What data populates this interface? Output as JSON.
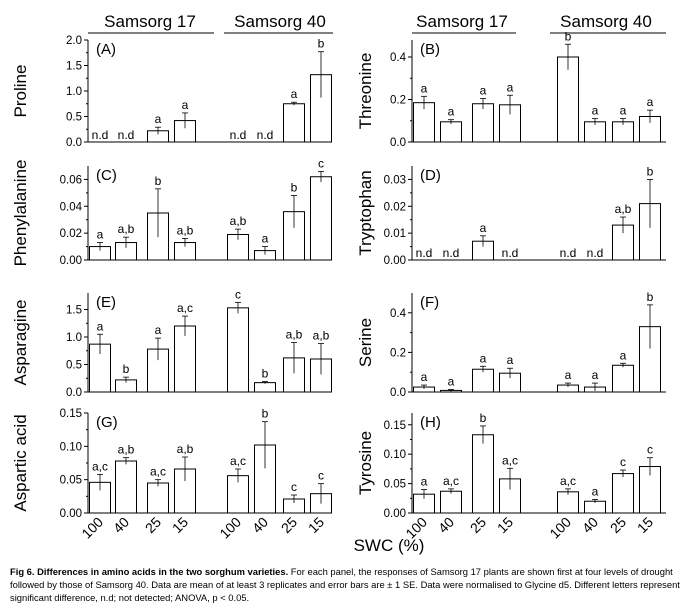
{
  "figure": {
    "varieties": [
      "Samsorg 17",
      "Samsorg 40"
    ],
    "x_tick_labels": [
      "100",
      "40",
      "25",
      "15",
      "100",
      "40",
      "25",
      "15"
    ],
    "xlabel": "SWC (%)"
  },
  "caption": {
    "lead": "Fig 6. Differences in amino acids in the two sorghum varieties.",
    "text": " For each panel, the responses of Samsorg 17 plants are shown first at four levels of drought followed by those of Samsorg 40. Data are mean of at least 3 replicates and error bars are ± 1 SE. Data were normalised to Glycine d5. Different letters represent significant difference, n.d; not detected; ANOVA, p < 0.05."
  },
  "chart_data": [
    {
      "panel": "(A)",
      "type": "bar",
      "ylabel": "Proline",
      "ylim": [
        0,
        2.0
      ],
      "yticks": [
        "0.0",
        "0.5",
        "1.0",
        "1.5",
        "2.0"
      ],
      "categories": [
        "100",
        "40",
        "25",
        "15",
        "100",
        "40",
        "25",
        "15"
      ],
      "values": [
        0,
        0,
        0.22,
        0.42,
        0,
        0,
        0.75,
        1.32
      ],
      "errors": [
        0,
        0,
        0.07,
        0.15,
        0,
        0,
        0.03,
        0.45
      ],
      "labels": [
        "n.d",
        "n.d",
        "a",
        "a",
        "n.d",
        "n.d",
        "a",
        "b"
      ]
    },
    {
      "panel": "(B)",
      "type": "bar",
      "ylabel": "Threonine",
      "ylim": [
        0,
        0.48
      ],
      "yticks": [
        "0.0",
        "0.2",
        "0.4"
      ],
      "categories": [
        "100",
        "40",
        "25",
        "15",
        "100",
        "40",
        "25",
        "15"
      ],
      "values": [
        0.185,
        0.095,
        0.18,
        0.175,
        0.4,
        0.095,
        0.095,
        0.12
      ],
      "errors": [
        0.03,
        0.01,
        0.025,
        0.045,
        0.06,
        0.015,
        0.015,
        0.03
      ],
      "labels": [
        "a",
        "a",
        "a",
        "a",
        "b",
        "a",
        "a",
        "a"
      ]
    },
    {
      "panel": "(C)",
      "type": "bar",
      "ylabel": "Phenylalanine",
      "ylim": [
        0,
        0.07
      ],
      "yticks": [
        "0.00",
        "0.02",
        "0.04",
        "0.06"
      ],
      "categories": [
        "100",
        "40",
        "25",
        "15",
        "100",
        "40",
        "25",
        "15"
      ],
      "values": [
        0.01,
        0.013,
        0.035,
        0.013,
        0.019,
        0.007,
        0.036,
        0.062
      ],
      "errors": [
        0.003,
        0.004,
        0.018,
        0.003,
        0.004,
        0.003,
        0.012,
        0.004
      ],
      "labels": [
        "a",
        "a,b",
        "b",
        "a,b",
        "a,b",
        "a",
        "b",
        "c"
      ]
    },
    {
      "panel": "(D)",
      "type": "bar",
      "ylabel": "Tryptophan",
      "ylim": [
        0,
        0.035
      ],
      "yticks": [
        "0.00",
        "0.01",
        "0.02",
        "0.03"
      ],
      "categories": [
        "100",
        "40",
        "25",
        "15",
        "100",
        "40",
        "25",
        "15"
      ],
      "values": [
        0,
        0,
        0.007,
        0,
        0,
        0,
        0.013,
        0.021
      ],
      "errors": [
        0,
        0,
        0.002,
        0,
        0,
        0,
        0.003,
        0.009
      ],
      "labels": [
        "n.d",
        "n.d",
        "a",
        "n.d",
        "n.d",
        "n.d",
        "a,b",
        "b"
      ]
    },
    {
      "panel": "(E)",
      "type": "bar",
      "ylabel": "Asparagine",
      "ylim": [
        0,
        1.8
      ],
      "yticks": [
        "0.0",
        "0.5",
        "1.0",
        "1.5"
      ],
      "categories": [
        "100",
        "40",
        "25",
        "15",
        "100",
        "40",
        "25",
        "15"
      ],
      "values": [
        0.87,
        0.22,
        0.78,
        1.2,
        1.53,
        0.17,
        0.62,
        0.6
      ],
      "errors": [
        0.18,
        0.05,
        0.2,
        0.18,
        0.1,
        0.02,
        0.28,
        0.28
      ],
      "labels": [
        "a",
        "b",
        "a",
        "a,c",
        "c",
        "b",
        "a,b",
        "a,b"
      ]
    },
    {
      "panel": "(F)",
      "type": "bar",
      "ylabel": "Serine",
      "ylim": [
        0,
        0.5
      ],
      "yticks": [
        "0.0",
        "0.2",
        "0.4"
      ],
      "categories": [
        "100",
        "40",
        "25",
        "15",
        "100",
        "40",
        "25",
        "15"
      ],
      "values": [
        0.025,
        0.008,
        0.115,
        0.095,
        0.035,
        0.025,
        0.135,
        0.33
      ],
      "errors": [
        0.01,
        0.005,
        0.015,
        0.025,
        0.01,
        0.02,
        0.01,
        0.11
      ],
      "labels": [
        "a",
        "a",
        "a",
        "a",
        "a",
        "a",
        "a",
        "b"
      ]
    },
    {
      "panel": "(G)",
      "type": "bar",
      "ylabel": "Aspartic acid",
      "ylim": [
        0,
        0.15
      ],
      "yticks": [
        "0.00",
        "0.05",
        "0.10",
        "0.15"
      ],
      "categories": [
        "100",
        "40",
        "25",
        "15",
        "100",
        "40",
        "25",
        "15"
      ],
      "values": [
        0.046,
        0.078,
        0.045,
        0.066,
        0.056,
        0.102,
        0.021,
        0.029
      ],
      "errors": [
        0.012,
        0.005,
        0.005,
        0.018,
        0.01,
        0.035,
        0.006,
        0.015
      ],
      "labels": [
        "a,c",
        "a,b",
        "a,c",
        "a,b",
        "a,c",
        "b",
        "c",
        "c"
      ]
    },
    {
      "panel": "(H)",
      "type": "bar",
      "ylabel": "Tyrosine",
      "ylim": [
        0,
        0.17
      ],
      "yticks": [
        "0.00",
        "0.05",
        "0.10",
        "0.15"
      ],
      "categories": [
        "100",
        "40",
        "25",
        "15",
        "100",
        "40",
        "25",
        "15"
      ],
      "values": [
        0.032,
        0.037,
        0.133,
        0.058,
        0.036,
        0.02,
        0.067,
        0.079
      ],
      "errors": [
        0.008,
        0.004,
        0.015,
        0.018,
        0.005,
        0.003,
        0.006,
        0.015
      ],
      "labels": [
        "a",
        "a,c",
        "b",
        "a,c",
        "a,c",
        "a",
        "c",
        "c"
      ]
    }
  ]
}
